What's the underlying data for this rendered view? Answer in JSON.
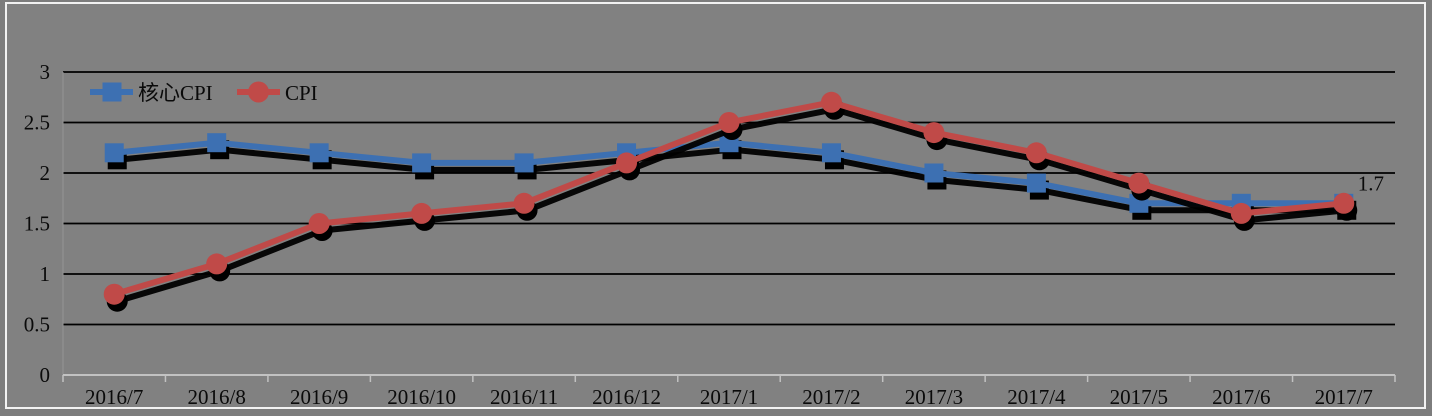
{
  "chart_data": {
    "type": "line",
    "title": "",
    "xlabel": "",
    "ylabel": "",
    "categories": [
      "2016/7",
      "2016/8",
      "2016/9",
      "2016/10",
      "2016/11",
      "2016/12",
      "2017/1",
      "2017/2",
      "2017/3",
      "2017/4",
      "2017/5",
      "2017/6",
      "2017/7"
    ],
    "series": [
      {
        "name": "核心CPI",
        "marker": "square",
        "color": "#3D70B2",
        "values": [
          2.2,
          2.3,
          2.2,
          2.1,
          2.1,
          2.2,
          2.3,
          2.2,
          2.0,
          1.9,
          1.7,
          1.7,
          1.7
        ]
      },
      {
        "name": "CPI",
        "marker": "circle",
        "color": "#C04A48",
        "values": [
          0.8,
          1.1,
          1.5,
          1.6,
          1.7,
          2.1,
          2.5,
          2.7,
          2.4,
          2.2,
          1.9,
          1.6,
          1.7
        ]
      }
    ],
    "ylim": [
      0,
      3
    ],
    "yticks": [
      {
        "label": "3",
        "value": 3
      },
      {
        "label": "2.5",
        "value": 2.5
      },
      {
        "label": "2",
        "value": 2
      },
      {
        "label": "1.5",
        "value": 1.5
      },
      {
        "label": "1",
        "value": 1
      },
      {
        "label": "0.5",
        "value": 0.5
      },
      {
        "label": "0",
        "value": 0
      }
    ],
    "grid": "horizontal",
    "legend_position": "top-left-inside",
    "annotation": {
      "text": "1.7",
      "series_index": 1,
      "point_index": 12
    },
    "colors": {
      "background": "#7D7D7D",
      "plot_background": "#818181",
      "gridline": "#000000",
      "axis_line": "#C2C2C2",
      "y_axis_line": "#959595",
      "text": "#0A0A0A",
      "frame_border": "#F2F2F2",
      "shadow": "#000000"
    }
  }
}
